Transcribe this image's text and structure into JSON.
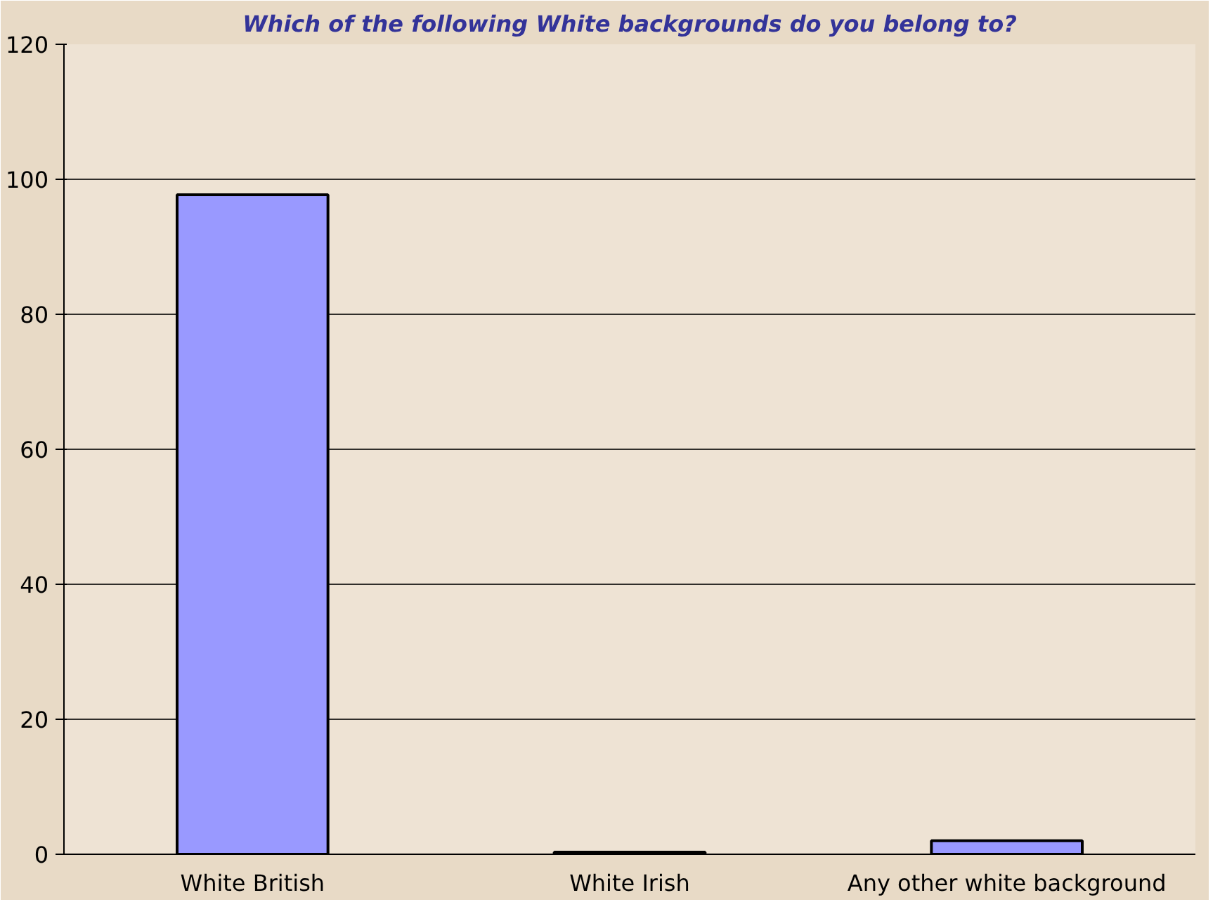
{
  "chart_data": {
    "type": "bar",
    "title": "Which of the following White backgrounds do you belong to?",
    "categories": [
      "White British",
      "White Irish",
      "Any other white background"
    ],
    "values": [
      97.7,
      0.3,
      2.0
    ],
    "color": "#9999ff",
    "ylim": [
      0,
      120
    ],
    "yticks": [
      0,
      20,
      40,
      60,
      80,
      100,
      120
    ],
    "grid": "y"
  }
}
